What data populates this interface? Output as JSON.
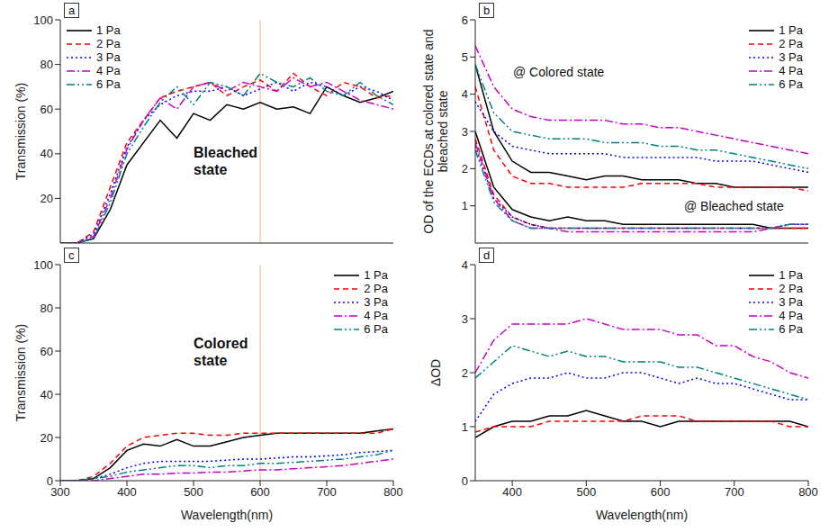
{
  "chart_data": [
    {
      "type": "line",
      "panel_label": "a",
      "y_label": "Transmission (%)",
      "tick_labels": "y",
      "legend": "upper left",
      "xlim": [
        300,
        800
      ],
      "xticks": [
        300,
        400,
        500,
        600,
        700,
        800
      ],
      "ylim": [
        0,
        100
      ],
      "yticks": [
        20,
        40,
        60,
        80,
        100
      ],
      "vline": {
        "x": 600,
        "color": "#f4b183"
      },
      "annotations": [
        "Bleached state"
      ],
      "x": [
        300,
        325,
        350,
        375,
        400,
        425,
        450,
        475,
        500,
        525,
        550,
        575,
        600,
        625,
        650,
        675,
        700,
        725,
        750,
        775,
        800
      ],
      "series": [
        {
          "name": "1 Pa",
          "color": "#000000",
          "line_style": "solid",
          "values": [
            0,
            0,
            2,
            15,
            35,
            45,
            55,
            47,
            58,
            55,
            62,
            60,
            63,
            60,
            61,
            58,
            70,
            66,
            63,
            65,
            68
          ]
        },
        {
          "name": "2 Pa",
          "color": "#ff0000",
          "line_style": "dashed",
          "values": [
            0,
            0,
            5,
            25,
            45,
            55,
            65,
            68,
            70,
            72,
            66,
            70,
            73,
            68,
            76,
            70,
            66,
            72,
            70,
            65,
            66
          ]
        },
        {
          "name": "3 Pa",
          "color": "#0000ff",
          "line_style": "dotted",
          "values": [
            0,
            0,
            4,
            22,
            43,
            55,
            62,
            66,
            68,
            68,
            70,
            66,
            69,
            72,
            68,
            72,
            70,
            66,
            70,
            68,
            64
          ]
        },
        {
          "name": "4 Pa",
          "color": "#cc00cc",
          "line_style": "dashdot",
          "values": [
            0,
            0,
            3,
            20,
            42,
            55,
            65,
            60,
            70,
            72,
            68,
            72,
            70,
            68,
            74,
            70,
            72,
            68,
            64,
            62,
            60
          ]
        },
        {
          "name": "6 Pa",
          "color": "#008080",
          "line_style": "dashdotdot",
          "values": [
            0,
            0,
            2,
            18,
            40,
            52,
            63,
            70,
            62,
            72,
            70,
            66,
            76,
            72,
            70,
            74,
            68,
            66,
            72,
            66,
            62
          ]
        }
      ]
    },
    {
      "type": "line",
      "panel_label": "b",
      "y_label": "OD of the ECDs at colored state and bleached state",
      "tick_labels": "y",
      "legend": "upper right",
      "xlim": [
        350,
        800
      ],
      "xticks": [
        400,
        500,
        600,
        700,
        800
      ],
      "ylim": [
        0,
        6
      ],
      "yticks": [
        1,
        2,
        3,
        4,
        5,
        6
      ],
      "annotations": [
        "@ Colored state",
        "@ Bleached state"
      ],
      "x": [
        350,
        375,
        400,
        425,
        450,
        475,
        500,
        525,
        550,
        575,
        600,
        625,
        650,
        675,
        700,
        725,
        750,
        775,
        800
      ],
      "series": [
        {
          "name": "1 Pa",
          "color": "#000000",
          "line_style": "solid",
          "values": [
            4.8,
            3.0,
            2.2,
            1.9,
            1.9,
            1.8,
            1.7,
            1.8,
            1.8,
            1.7,
            1.7,
            1.7,
            1.6,
            1.6,
            1.5,
            1.5,
            1.5,
            1.5,
            1.5
          ],
          "bleached_values": [
            3.0,
            1.5,
            0.9,
            0.7,
            0.6,
            0.7,
            0.6,
            0.6,
            0.5,
            0.5,
            0.5,
            0.5,
            0.5,
            0.5,
            0.5,
            0.5,
            0.4,
            0.4,
            0.4
          ]
        },
        {
          "name": "2 Pa",
          "color": "#ff0000",
          "line_style": "dashed",
          "values": [
            4.2,
            2.5,
            1.8,
            1.6,
            1.6,
            1.5,
            1.5,
            1.5,
            1.5,
            1.6,
            1.6,
            1.6,
            1.6,
            1.5,
            1.5,
            1.5,
            1.5,
            1.5,
            1.4
          ],
          "bleached_values": [
            2.8,
            1.3,
            0.7,
            0.5,
            0.4,
            0.4,
            0.4,
            0.4,
            0.4,
            0.4,
            0.4,
            0.4,
            0.4,
            0.4,
            0.4,
            0.4,
            0.4,
            0.4,
            0.4
          ]
        },
        {
          "name": "3 Pa",
          "color": "#0000ff",
          "line_style": "dotted",
          "values": [
            3.8,
            3.0,
            2.6,
            2.5,
            2.4,
            2.4,
            2.4,
            2.4,
            2.3,
            2.3,
            2.3,
            2.3,
            2.3,
            2.2,
            2.2,
            2.2,
            2.1,
            2.0,
            1.9
          ],
          "bleached_values": [
            2.6,
            1.2,
            0.7,
            0.5,
            0.4,
            0.4,
            0.4,
            0.4,
            0.4,
            0.4,
            0.4,
            0.4,
            0.4,
            0.4,
            0.4,
            0.4,
            0.4,
            0.5,
            0.5
          ]
        },
        {
          "name": "4 Pa",
          "color": "#cc00cc",
          "line_style": "dashdot",
          "values": [
            5.3,
            4.2,
            3.6,
            3.4,
            3.3,
            3.3,
            3.3,
            3.3,
            3.2,
            3.2,
            3.1,
            3.1,
            3.0,
            2.9,
            2.8,
            2.7,
            2.6,
            2.5,
            2.4
          ],
          "bleached_values": [
            2.7,
            1.2,
            0.6,
            0.4,
            0.4,
            0.3,
            0.3,
            0.3,
            0.3,
            0.3,
            0.3,
            0.3,
            0.3,
            0.3,
            0.3,
            0.3,
            0.4,
            0.5,
            0.5
          ]
        },
        {
          "name": "6 Pa",
          "color": "#008080",
          "line_style": "dashdotdot",
          "values": [
            4.8,
            3.5,
            3.0,
            2.9,
            2.8,
            2.8,
            2.8,
            2.7,
            2.7,
            2.7,
            2.6,
            2.6,
            2.5,
            2.5,
            2.4,
            2.3,
            2.2,
            2.1,
            2.0
          ],
          "bleached_values": [
            2.5,
            1.1,
            0.6,
            0.4,
            0.4,
            0.4,
            0.4,
            0.4,
            0.4,
            0.4,
            0.4,
            0.4,
            0.4,
            0.4,
            0.4,
            0.4,
            0.4,
            0.5,
            0.5
          ]
        }
      ]
    },
    {
      "type": "line",
      "panel_label": "c",
      "x_label": "Wavelength(nm)",
      "y_label": "Transmission (%)",
      "legend": "upper right",
      "xlim": [
        300,
        800
      ],
      "xticks": [
        300,
        400,
        500,
        600,
        700,
        800
      ],
      "ylim": [
        0,
        100
      ],
      "yticks": [
        0,
        20,
        40,
        60,
        80,
        100
      ],
      "vline": {
        "x": 600,
        "color": "#f4b183"
      },
      "annotations": [
        "Colored state"
      ],
      "x": [
        300,
        325,
        350,
        375,
        400,
        425,
        450,
        475,
        500,
        525,
        550,
        575,
        600,
        625,
        650,
        675,
        700,
        725,
        750,
        775,
        800
      ],
      "series": [
        {
          "name": "1 Pa",
          "color": "#000000",
          "line_style": "solid",
          "values": [
            0,
            0,
            1,
            6,
            14,
            17,
            16,
            19,
            16,
            16,
            18,
            20,
            21,
            22,
            22,
            22,
            22,
            22,
            22,
            23,
            24
          ]
        },
        {
          "name": "2 Pa",
          "color": "#ff0000",
          "line_style": "dashed",
          "values": [
            0,
            0,
            2,
            8,
            16,
            20,
            21,
            22,
            22,
            21,
            21,
            22,
            22,
            22,
            22,
            22,
            22,
            22,
            22,
            22,
            24
          ]
        },
        {
          "name": "3 Pa",
          "color": "#0000ff",
          "line_style": "dotted",
          "values": [
            0,
            0,
            1,
            3,
            6,
            8,
            9,
            9,
            9,
            9,
            9.5,
            10,
            10,
            10.5,
            11,
            11,
            11.5,
            12,
            13,
            13.5,
            14
          ]
        },
        {
          "name": "4 Pa",
          "color": "#cc00cc",
          "line_style": "dashdot",
          "values": [
            0,
            0,
            0,
            1,
            2,
            3,
            3,
            3.5,
            3.5,
            4,
            4,
            4.5,
            5,
            5,
            5.5,
            6,
            6.5,
            7,
            8,
            9,
            10
          ]
        },
        {
          "name": "6 Pa",
          "color": "#008080",
          "line_style": "dashdotdot",
          "values": [
            0,
            0,
            1,
            2,
            4,
            5,
            6,
            7,
            7,
            6,
            7,
            7,
            8,
            8,
            8.5,
            9,
            9.5,
            10,
            11,
            12,
            14
          ]
        }
      ]
    },
    {
      "type": "line",
      "panel_label": "d",
      "x_label": "Wavelength(nm)",
      "y_label": "ΔOD",
      "legend": "upper right",
      "xlim": [
        350,
        800
      ],
      "xticks": [
        400,
        500,
        600,
        700,
        800
      ],
      "ylim": [
        0,
        4
      ],
      "yticks": [
        0,
        1,
        2,
        3,
        4
      ],
      "x": [
        350,
        375,
        400,
        425,
        450,
        475,
        500,
        525,
        550,
        575,
        600,
        625,
        650,
        675,
        700,
        725,
        750,
        775,
        800
      ],
      "series": [
        {
          "name": "1 Pa",
          "color": "#000000",
          "line_style": "solid",
          "values": [
            0.8,
            1.0,
            1.1,
            1.1,
            1.2,
            1.2,
            1.3,
            1.2,
            1.1,
            1.1,
            1.0,
            1.1,
            1.1,
            1.1,
            1.1,
            1.1,
            1.1,
            1.1,
            1.0
          ]
        },
        {
          "name": "2 Pa",
          "color": "#ff0000",
          "line_style": "dashed",
          "values": [
            0.9,
            1.0,
            1.0,
            1.0,
            1.1,
            1.1,
            1.1,
            1.1,
            1.1,
            1.2,
            1.2,
            1.2,
            1.1,
            1.1,
            1.1,
            1.1,
            1.1,
            1.0,
            1.0
          ]
        },
        {
          "name": "3 Pa",
          "color": "#0000ff",
          "line_style": "dotted",
          "values": [
            1.1,
            1.6,
            1.8,
            1.9,
            1.9,
            2.0,
            1.9,
            1.9,
            2.0,
            2.0,
            1.9,
            1.8,
            1.9,
            1.8,
            1.8,
            1.7,
            1.6,
            1.5,
            1.5
          ]
        },
        {
          "name": "4 Pa",
          "color": "#cc00cc",
          "line_style": "dashdot",
          "values": [
            2.0,
            2.6,
            2.9,
            2.9,
            2.9,
            2.9,
            3.0,
            2.9,
            2.8,
            2.8,
            2.8,
            2.7,
            2.7,
            2.5,
            2.5,
            2.3,
            2.2,
            2.0,
            1.9
          ]
        },
        {
          "name": "6 Pa",
          "color": "#008080",
          "line_style": "dashdotdot",
          "values": [
            1.9,
            2.2,
            2.5,
            2.4,
            2.3,
            2.4,
            2.3,
            2.3,
            2.2,
            2.2,
            2.2,
            2.1,
            2.1,
            2.0,
            1.9,
            1.8,
            1.7,
            1.6,
            1.5
          ]
        }
      ]
    }
  ]
}
